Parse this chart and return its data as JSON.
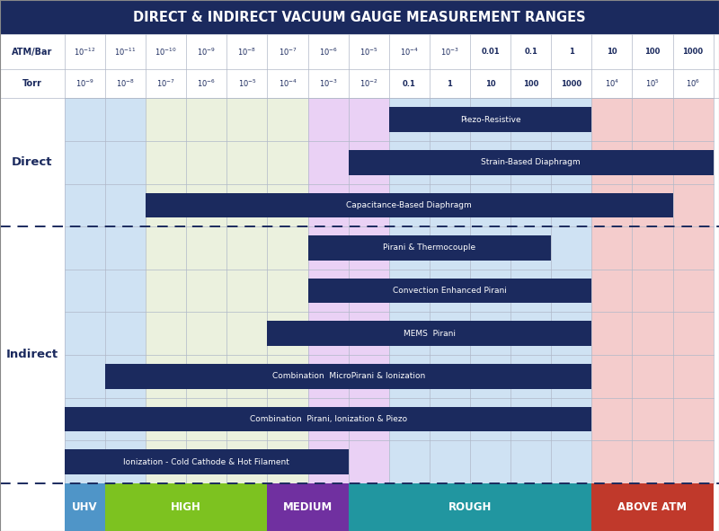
{
  "title": "DIRECT & INDIRECT VACUUM GAUGE MEASUREMENT RANGES",
  "title_bg": "#1b2a5e",
  "title_color": "#ffffff",
  "header_text_color": "#1b2a5e",
  "atm_bar_labels": [
    "$10^{-12}$",
    "$10^{-11}$",
    "$10^{-10}$",
    "$10^{-9}$",
    "$10^{-8}$",
    "$10^{-7}$",
    "$10^{-6}$",
    "$10^{-5}$",
    "$10^{-4}$",
    "$10^{-3}$",
    "0.01",
    "0.1",
    "1",
    "10",
    "100",
    "1000"
  ],
  "torr_labels": [
    "$10^{-9}$",
    "$10^{-8}$",
    "$10^{-7}$",
    "$10^{-6}$",
    "$10^{-5}$",
    "$10^{-4}$",
    "$10^{-3}$",
    "$10^{-2}$",
    "0.1",
    "1",
    "10",
    "100",
    "1000",
    "$10^{4}$",
    "$10^{5}$",
    "$10^{6}$"
  ],
  "n_cols": 16,
  "col_zone": [
    "uhv",
    "uhv",
    "high",
    "high",
    "high",
    "high",
    "medium",
    "medium",
    "rough",
    "rough",
    "rough",
    "rough",
    "rough",
    "above_atm",
    "above_atm",
    "above_atm"
  ],
  "background_colors": {
    "uhv": "#cfe2f3",
    "high": "#ebf1de",
    "medium": "#ead1f5",
    "rough": "#cfe2f3",
    "above_atm": "#f4cccc"
  },
  "bar_color": "#1b2a5e",
  "bar_text_color": "#ffffff",
  "dashed_line_color": "#1b2a5e",
  "grid_color": "#b0b8c8",
  "gauges": [
    {
      "label": "Piezo-Resistive",
      "start": 8,
      "end": 13,
      "row": 0
    },
    {
      "label": "Strain-Based Diaphragm",
      "start": 7,
      "end": 16,
      "row": 1
    },
    {
      "label": "Capacitance-Based Diaphragm",
      "start": 2,
      "end": 15,
      "row": 2
    },
    {
      "label": "Pirani & Thermocouple",
      "start": 6,
      "end": 12,
      "row": 3
    },
    {
      "label": "Convection Enhanced Pirani",
      "start": 6,
      "end": 13,
      "row": 4
    },
    {
      "label": "MEMS  Pirani",
      "start": 5,
      "end": 13,
      "row": 5
    },
    {
      "label": "Combination  MicroPirani & Ionization",
      "start": 1,
      "end": 13,
      "row": 6
    },
    {
      "label": "Combination  Pirani, Ionization & Piezo",
      "start": 0,
      "end": 13,
      "row": 7
    },
    {
      "label": "Ionization - Cold Cathode & Hot Filament",
      "start": 0,
      "end": 7,
      "row": 8
    }
  ],
  "n_direct_rows": 3,
  "n_rows": 9,
  "bottom_zones": [
    {
      "label": "UHV",
      "start": 0,
      "end": 1,
      "color": "#4f95c8"
    },
    {
      "label": "HIGH",
      "start": 1,
      "end": 5,
      "color": "#7dc220"
    },
    {
      "label": "MEDIUM",
      "start": 5,
      "end": 7,
      "color": "#7030a0"
    },
    {
      "label": "ROUGH",
      "start": 7,
      "end": 13,
      "color": "#2196a0"
    },
    {
      "label": "ABOVE ATM",
      "start": 13,
      "end": 16,
      "color": "#c0392b"
    }
  ],
  "figsize": [
    8.0,
    5.91
  ],
  "dpi": 100
}
